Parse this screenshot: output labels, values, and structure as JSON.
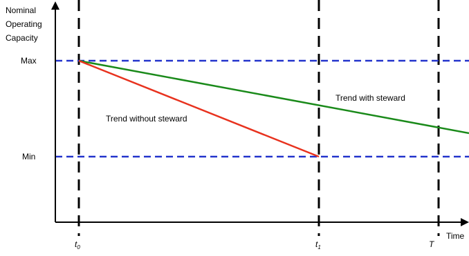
{
  "y_axis_label": [
    "Nominal",
    "Operating",
    "Capacity"
  ],
  "x_axis_label": "Time",
  "levels": {
    "max": "Max",
    "min": "Min"
  },
  "time_marks": [
    {
      "base": "t",
      "sub": "0"
    },
    {
      "base": "t",
      "sub": "1"
    },
    {
      "base": "T",
      "sub": ""
    }
  ],
  "trends": {
    "with_steward": {
      "label": "Trend with steward",
      "color": "#1a8a1a"
    },
    "without_steward": {
      "label": "Trend without steward",
      "color": "#e8321e"
    }
  },
  "colors": {
    "axis": "#000000",
    "level_line": "#2233cc",
    "time_line": "#000000"
  }
}
